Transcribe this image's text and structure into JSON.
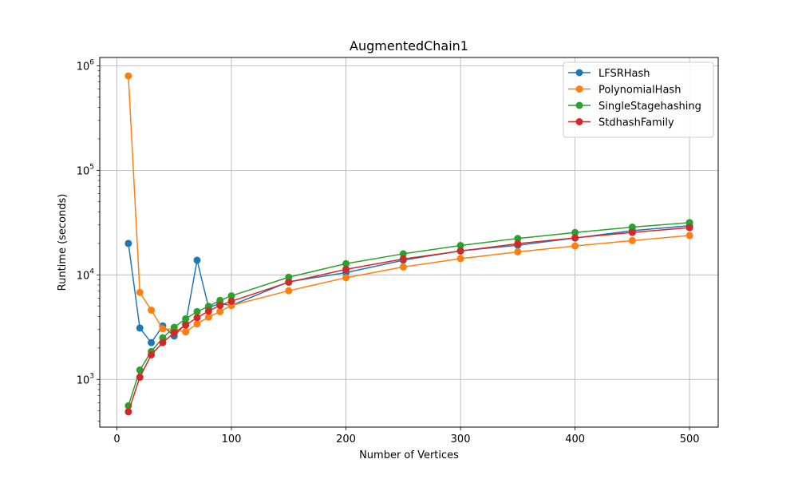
{
  "chart_data": {
    "type": "line",
    "title": "AugmentedChain1",
    "xlabel": "Number of Vertices",
    "ylabel": "Runtime (seconds)",
    "yscale": "log",
    "xlim": [
      -15,
      525
    ],
    "ylim": [
      350,
      1200000
    ],
    "xticks": [
      0,
      100,
      200,
      300,
      400,
      500
    ],
    "yticks": [
      1000,
      10000,
      100000,
      1000000
    ],
    "ytick_labels": [
      {
        "base": "10",
        "exp": "3"
      },
      {
        "base": "10",
        "exp": "4"
      },
      {
        "base": "10",
        "exp": "5"
      },
      {
        "base": "10",
        "exp": "6"
      }
    ],
    "grid": true,
    "legend_position": "top-right",
    "x": [
      10,
      20,
      30,
      40,
      50,
      60,
      70,
      80,
      90,
      100,
      150,
      200,
      250,
      300,
      350,
      400,
      450,
      500
    ],
    "series": [
      {
        "name": "LFSRHash",
        "color": "#1f77b4",
        "values": [
          20000,
          3100,
          2250,
          3250,
          2600,
          3400,
          13800,
          4900,
          5300,
          5100,
          8600,
          10500,
          13800,
          17000,
          19200,
          22500,
          26500,
          29500
        ]
      },
      {
        "name": "PolynomialHash",
        "color": "#ff7f0e",
        "values": [
          800000,
          6800,
          4600,
          3050,
          3000,
          2850,
          3400,
          3950,
          4450,
          5100,
          7050,
          9400,
          11900,
          14300,
          16600,
          18900,
          21300,
          23800
        ]
      },
      {
        "name": "SingleStagehashing",
        "color": "#2ca02c",
        "values": [
          560,
          1230,
          1850,
          2500,
          3150,
          3800,
          4450,
          5000,
          5700,
          6300,
          9500,
          12800,
          15900,
          19100,
          22300,
          25400,
          28600,
          31600
        ]
      },
      {
        "name": "StdhashFamily",
        "color": "#d62728",
        "values": [
          490,
          1050,
          1720,
          2250,
          2800,
          3300,
          3900,
          4500,
          5100,
          5600,
          8500,
          11300,
          14200,
          16900,
          19900,
          22600,
          25500,
          28300
        ]
      }
    ]
  }
}
